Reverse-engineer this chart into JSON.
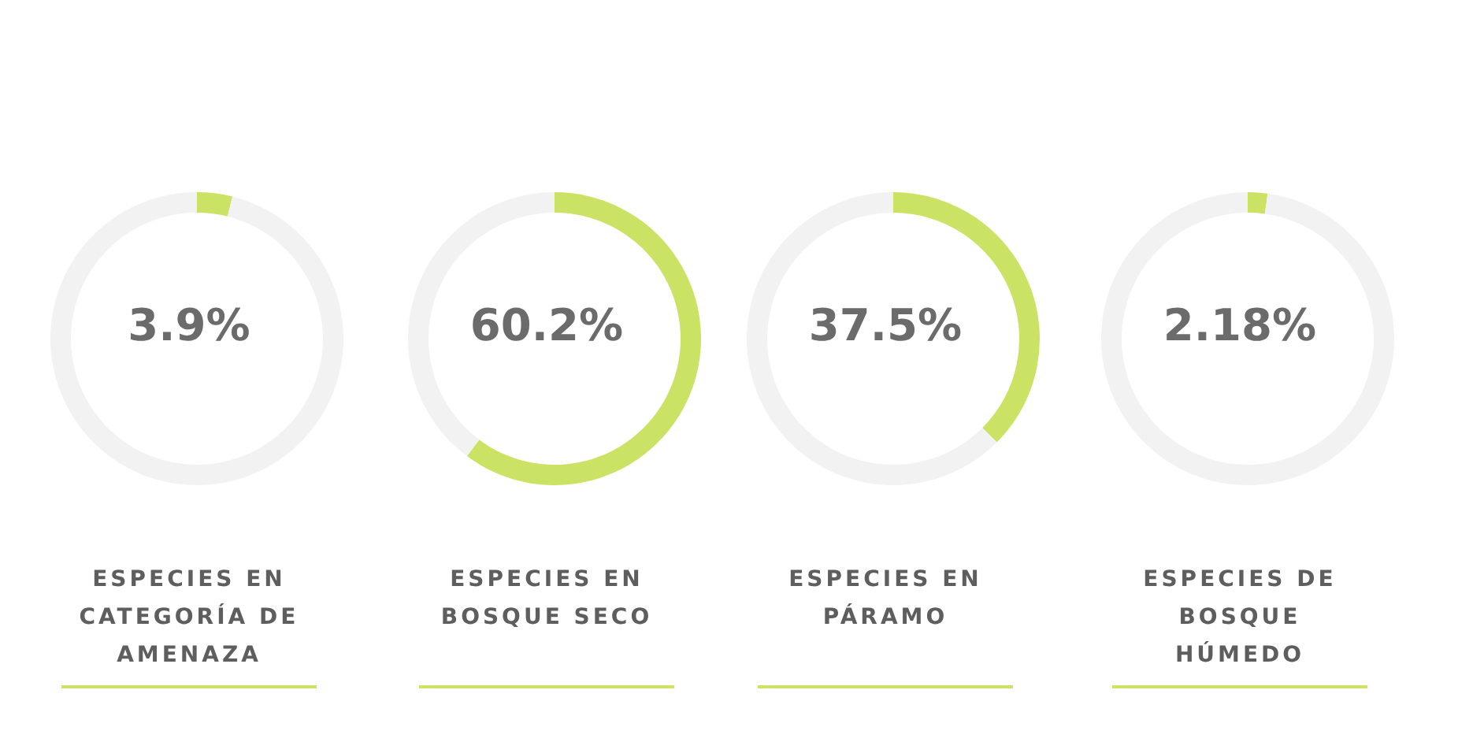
{
  "chart_data": [
    {
      "type": "donut",
      "title": "ESPECIES EN CATEGORÍA DE AMENAZA",
      "categories": [
        null,
        null
      ],
      "values": [
        3.9,
        96.1
      ],
      "colors": [
        "#cbe365",
        "#f2f2f2"
      ],
      "annotations": [
        "3.9%"
      ]
    },
    {
      "type": "donut",
      "title": "ESPECIES EN BOSQUE SECO",
      "categories": [
        null,
        null
      ],
      "values": [
        60.2,
        39.8
      ],
      "colors": [
        "#cbe365",
        "#f2f2f2"
      ],
      "annotations": [
        "60.2%"
      ]
    },
    {
      "type": "donut",
      "title": "ESPECIES EN PÁRAMO",
      "categories": [
        null,
        null
      ],
      "values": [
        37.5,
        62.5
      ],
      "colors": [
        "#cbe365",
        "#f2f2f2"
      ],
      "annotations": [
        "37.5%"
      ]
    },
    {
      "type": "donut",
      "title": "ESPECIES DE BOSQUE HÚMEDO",
      "categories": [
        null,
        null
      ],
      "values": [
        2.18,
        97.82
      ],
      "colors": [
        "#cbe365",
        "#f2f2f2"
      ],
      "annotations": [
        "2.18%"
      ]
    }
  ]
}
